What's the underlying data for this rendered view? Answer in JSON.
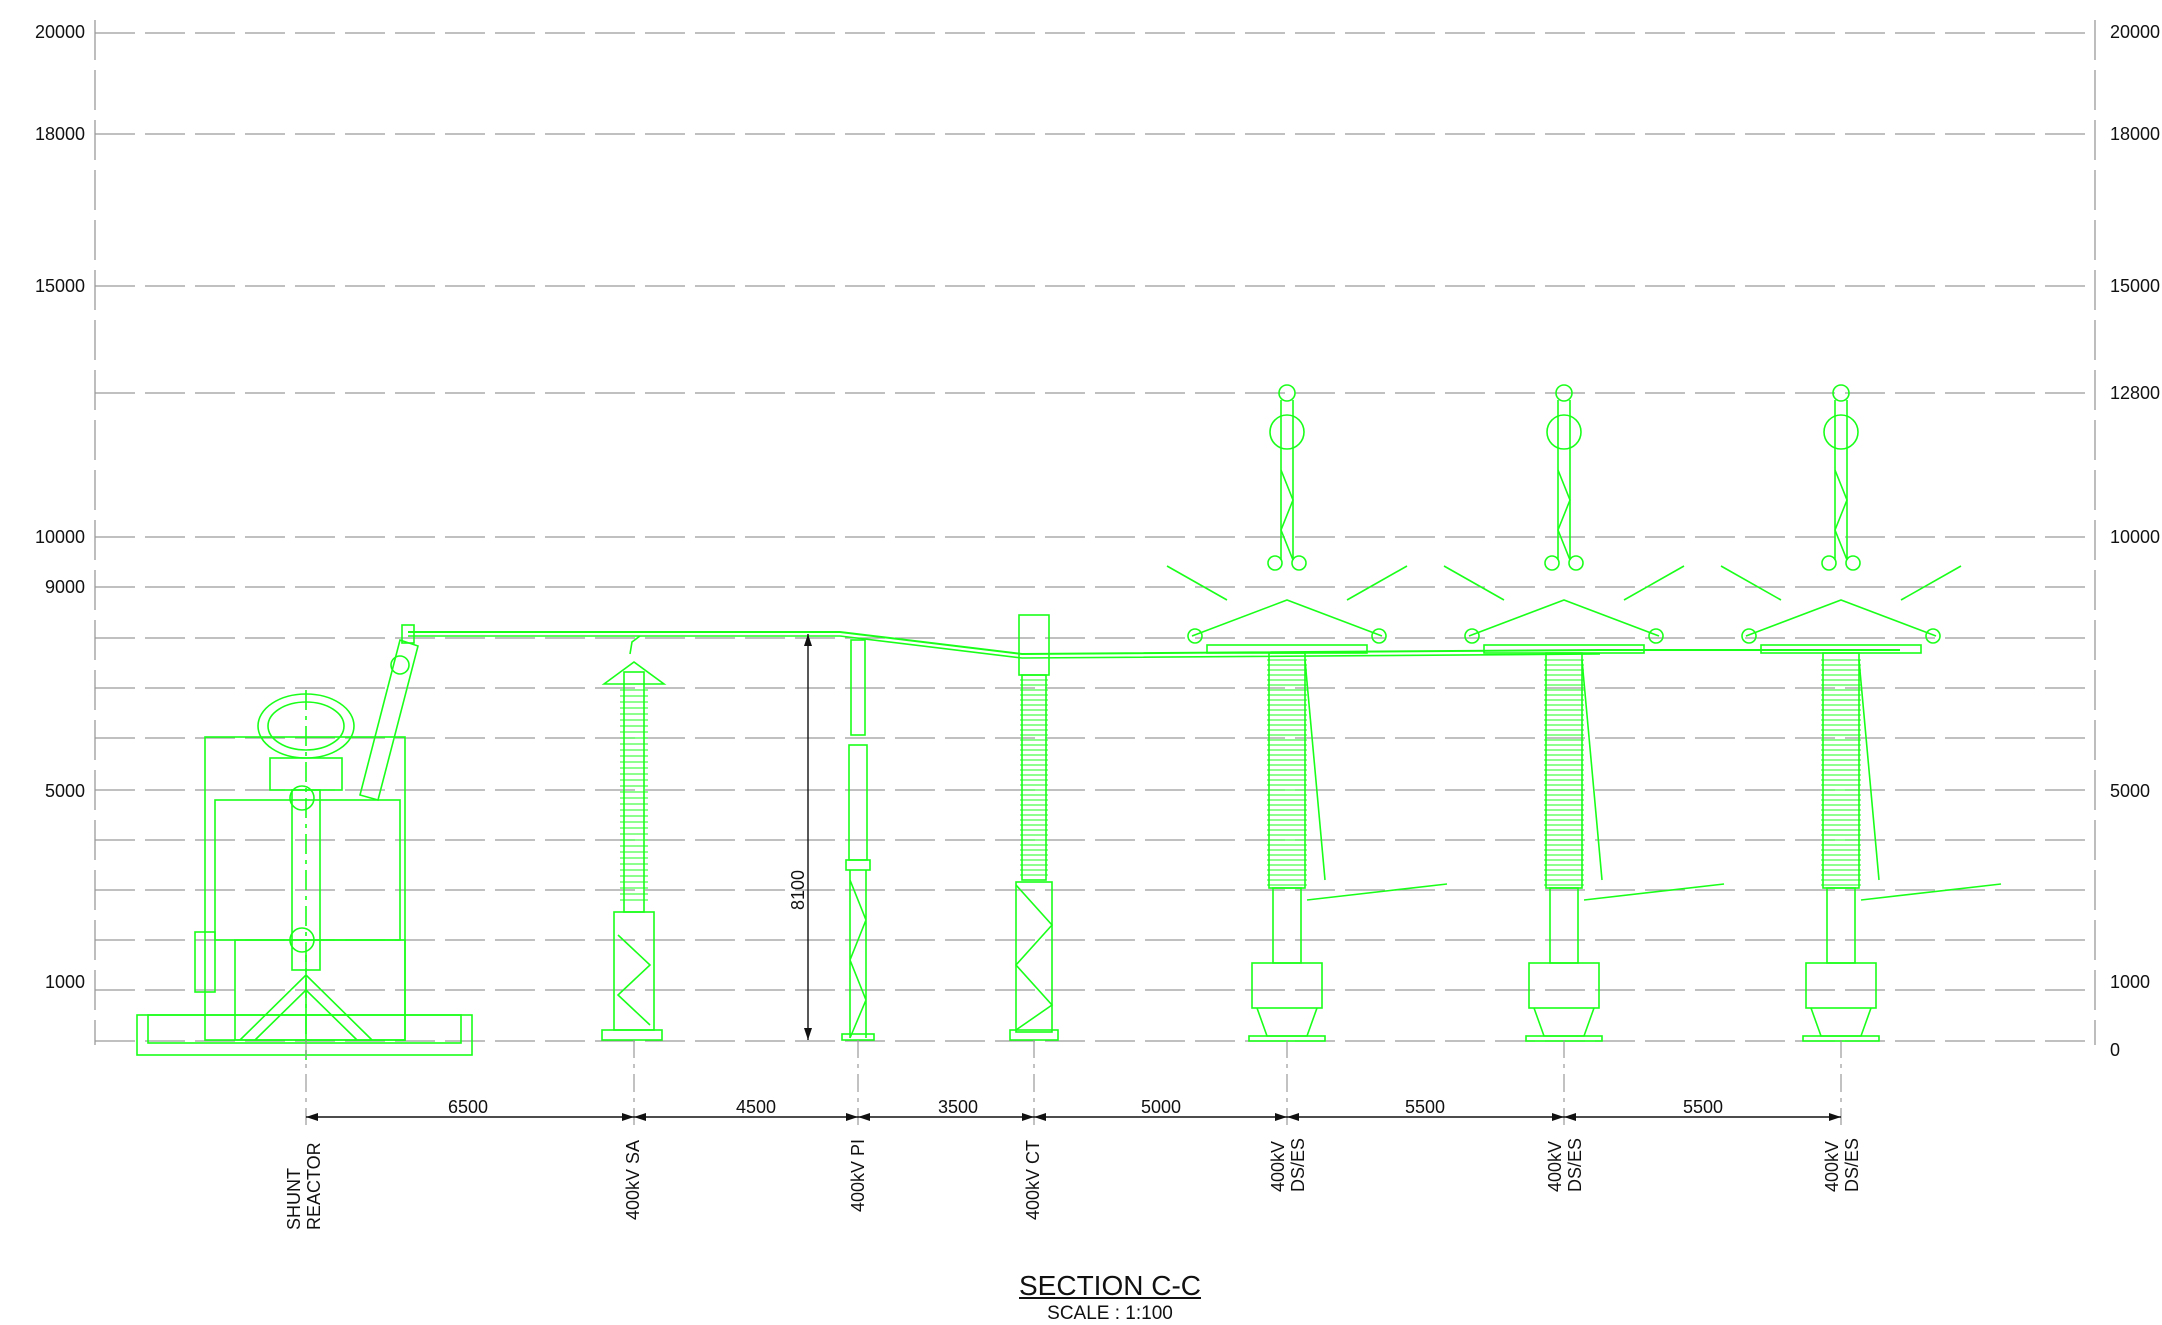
{
  "levels": {
    "left": [
      "20000",
      "18000",
      "15000",
      "10000",
      "9000",
      "5000",
      "1000"
    ],
    "right": [
      "20000",
      "18000",
      "15000",
      "12800",
      "10000",
      "5000",
      "1000",
      "0"
    ]
  },
  "dimensions": {
    "spacings": [
      "6500",
      "4500",
      "3500",
      "5000",
      "5500",
      "5500"
    ],
    "height": "8100"
  },
  "equipment": [
    {
      "label": "SHUNT\nREACTOR"
    },
    {
      "label": "400kV SA"
    },
    {
      "label": "400kV PI"
    },
    {
      "label": "400kV CT"
    },
    {
      "label": "400kV\nDS/ES"
    },
    {
      "label": "400kV\nDS/ES"
    },
    {
      "label": "400kV\nDS/ES"
    }
  ],
  "title": "SECTION C-C",
  "scale": "SCALE : 1:100",
  "colors": {
    "equipment": "#1aff1a",
    "grid": "#9a9a9a",
    "dimension": "#111111"
  }
}
